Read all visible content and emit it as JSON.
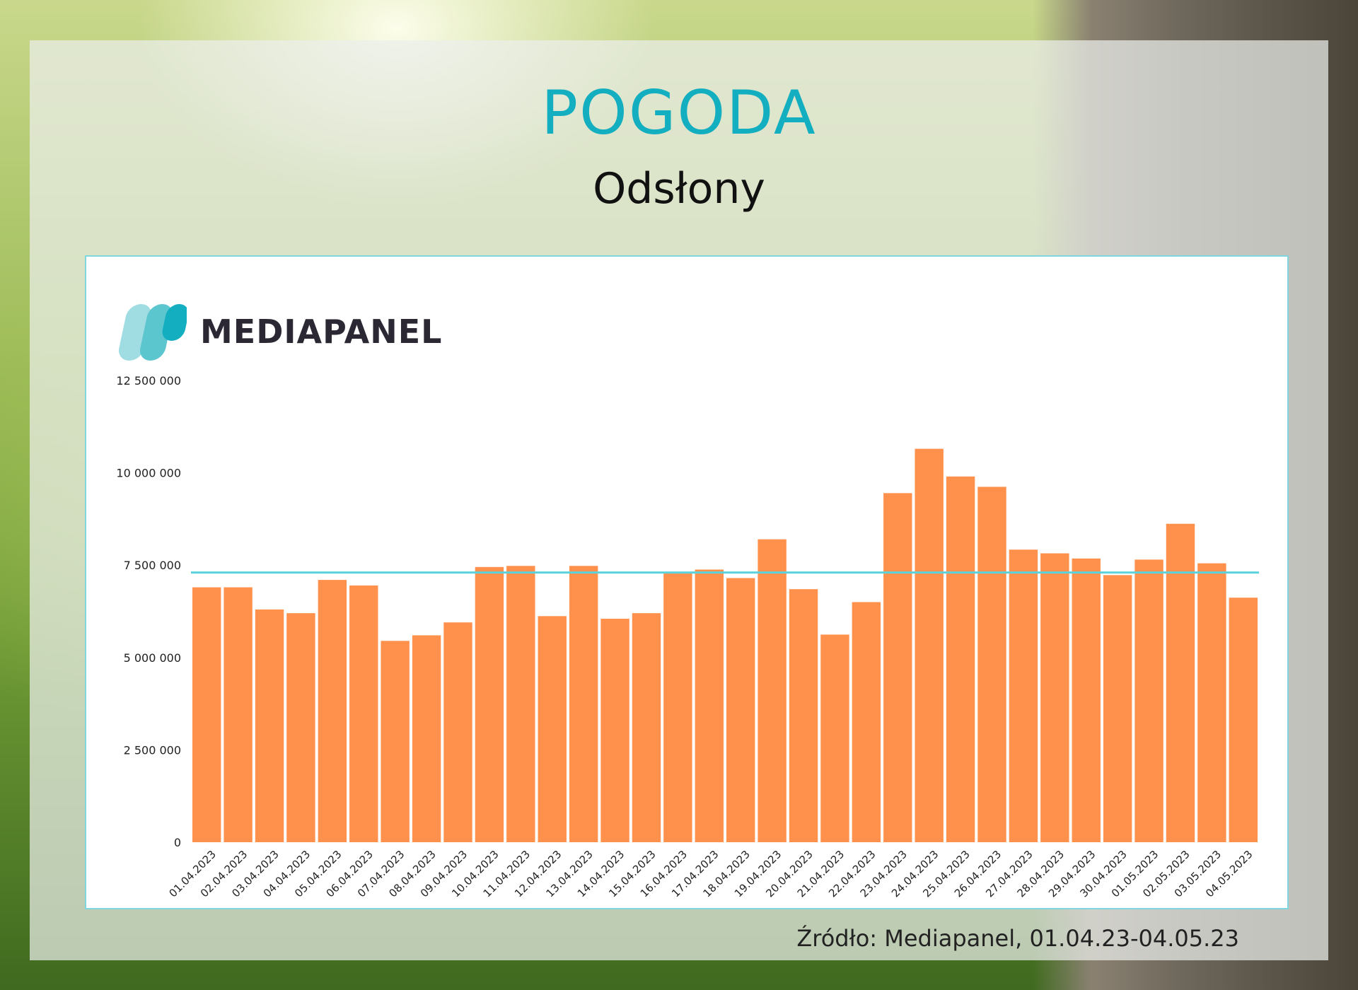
{
  "header": {
    "title": "POGODA",
    "subtitle": "Odsłony"
  },
  "logo": {
    "text": "MEDIAPANEL",
    "icon": "mediapanel-logo-icon",
    "colors": {
      "light": "#9fdde2",
      "dark": "#13aebf"
    }
  },
  "footer": {
    "source": "Źródło: Mediapanel, 01.04.23-04.05.23"
  },
  "colors": {
    "bar": "#ff914d",
    "average_line": "#5cd3db",
    "title": "#13aebf"
  },
  "chart_data": {
    "type": "bar",
    "title": "POGODA",
    "subtitle": "Odsłony",
    "xlabel": "",
    "ylabel": "",
    "ylim": [
      0,
      12500000
    ],
    "yticks": [
      0,
      2500000,
      5000000,
      7500000,
      10000000,
      12500000
    ],
    "ytick_labels": [
      "0",
      "2 500 000",
      "5 000 000",
      "7 500 000",
      "10 000 000",
      "12 500 000"
    ],
    "grid": false,
    "legend": "none",
    "reference_line": 7300000,
    "categories": [
      "01.04.2023",
      "02.04.2023",
      "03.04.2023",
      "04.04.2023",
      "05.04.2023",
      "06.04.2023",
      "07.04.2023",
      "08.04.2023",
      "09.04.2023",
      "10.04.2023",
      "11.04.2023",
      "12.04.2023",
      "13.04.2023",
      "14.04.2023",
      "15.04.2023",
      "16.04.2023",
      "17.04.2023",
      "18.04.2023",
      "19.04.2023",
      "20.04.2023",
      "21.04.2023",
      "22.04.2023",
      "23.04.2023",
      "24.04.2023",
      "25.04.2023",
      "26.04.2023",
      "27.04.2023",
      "28.04.2023",
      "29.04.2023",
      "30.04.2023",
      "01.05.2023",
      "02.05.2023",
      "03.05.2023",
      "04.05.2023"
    ],
    "values": [
      6900000,
      6900000,
      6300000,
      6200000,
      7100000,
      6950000,
      5450000,
      5600000,
      5950000,
      7450000,
      7480000,
      6120000,
      7480000,
      6050000,
      6200000,
      7300000,
      7380000,
      7150000,
      8200000,
      6850000,
      5620000,
      6500000,
      9450000,
      10650000,
      9900000,
      9620000,
      7920000,
      7820000,
      7680000,
      7230000,
      7650000,
      8620000,
      7550000,
      6620000
    ]
  }
}
